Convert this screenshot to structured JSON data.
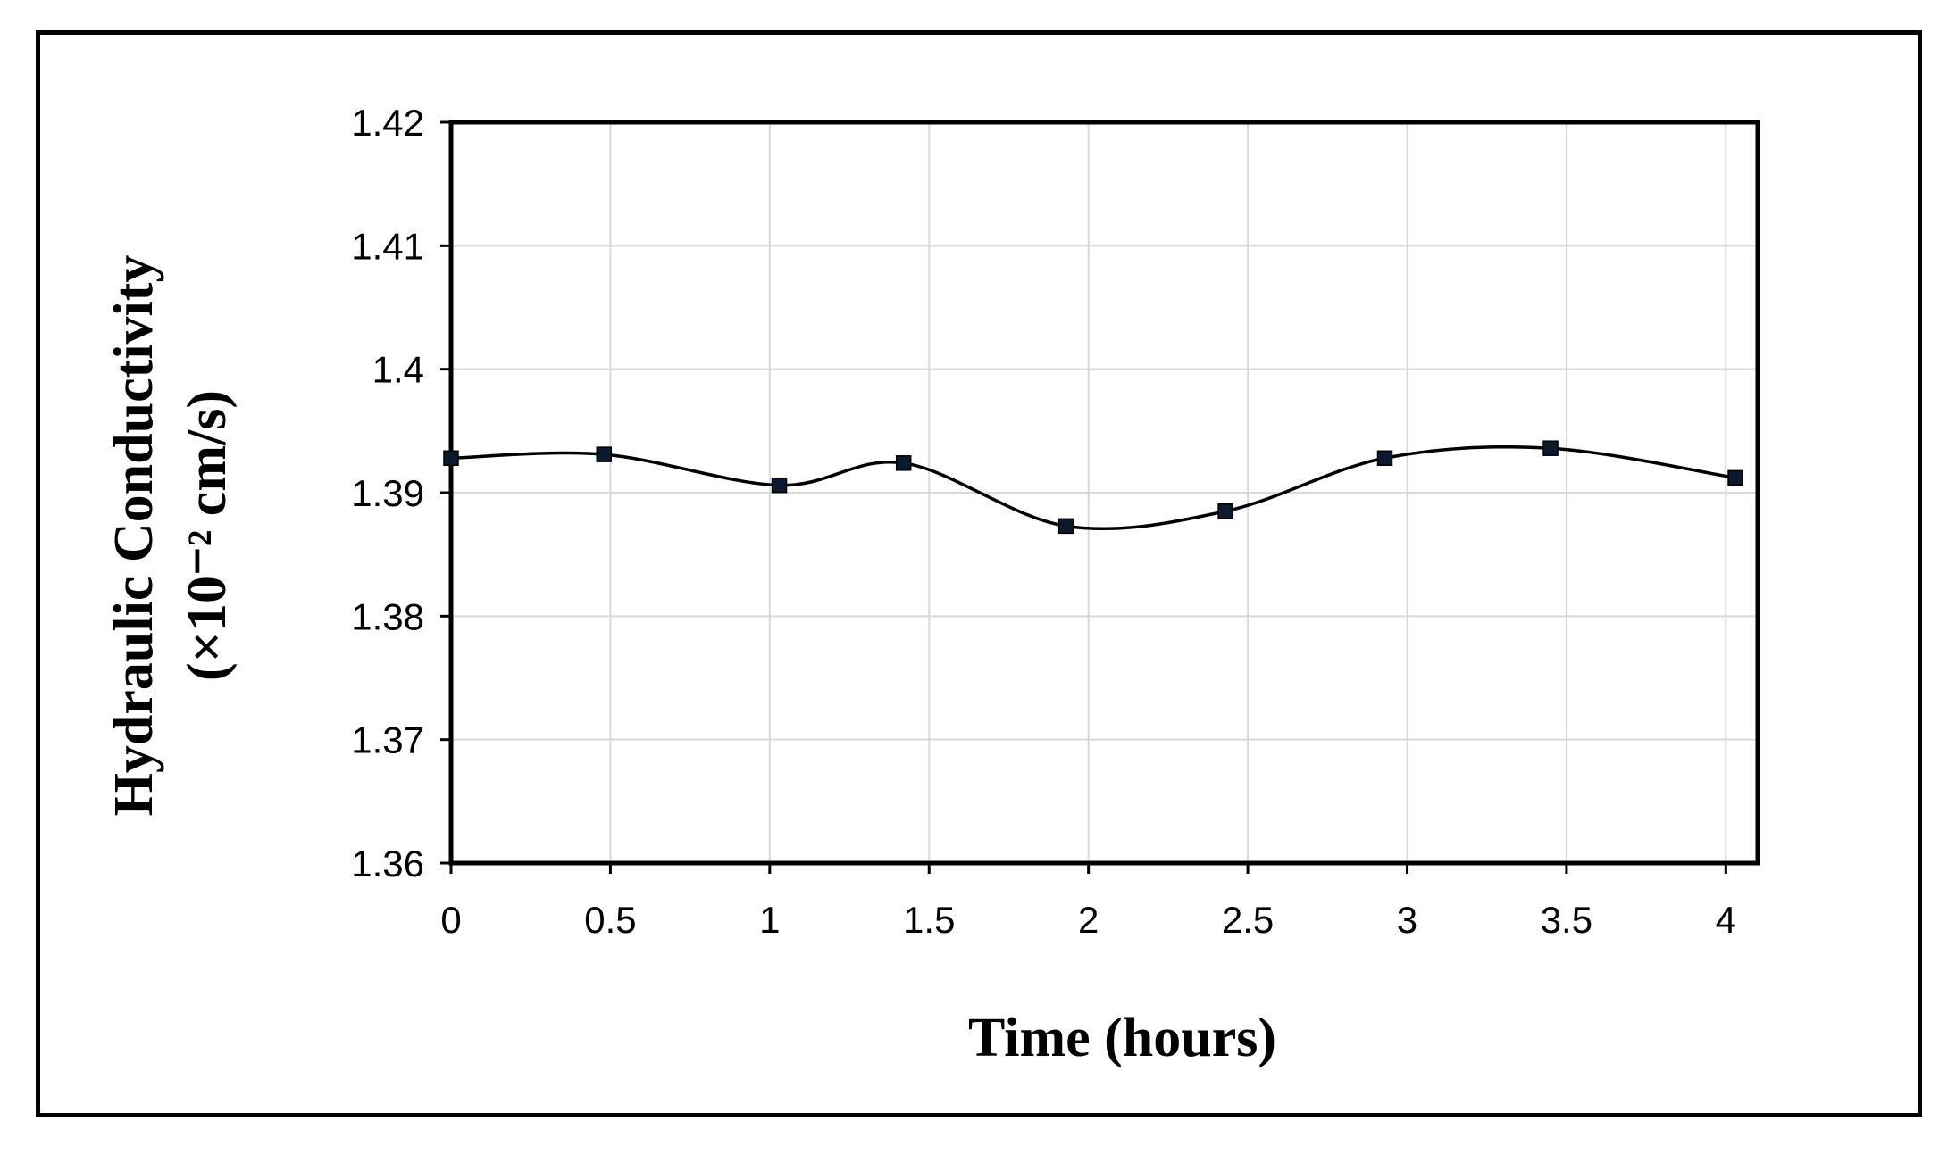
{
  "chart_data": {
    "type": "line",
    "title": "",
    "xlabel": "Time (hours)",
    "ylabel_line1": "Hydraulic Conductivity",
    "ylabel_line2": "(×10⁻² cm/s)",
    "xlim": [
      0,
      4.1
    ],
    "ylim": [
      1.36,
      1.42
    ],
    "xticks": [
      "0",
      "0.5",
      "1",
      "1.5",
      "2",
      "2.5",
      "3",
      "3.5",
      "4"
    ],
    "yticks": [
      "1.36",
      "1.37",
      "1.38",
      "1.39",
      "1.4",
      "1.41",
      "1.42"
    ],
    "grid": true,
    "smooth": true,
    "series": [
      {
        "color": "#000000",
        "marker": "square",
        "x": [
          0,
          0.48,
          1.03,
          1.42,
          1.93,
          2.43,
          2.93,
          3.45,
          4.03
        ],
        "y": [
          1.3928,
          1.3931,
          1.3906,
          1.3924,
          1.3873,
          1.3885,
          1.3928,
          1.3936,
          1.3912
        ]
      }
    ]
  }
}
